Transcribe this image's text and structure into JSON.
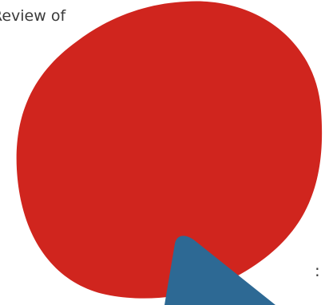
{
  "text_fragments": {
    "top": "Review of",
    "bottom": ":"
  },
  "colors": {
    "red_blob": "#d0251e",
    "blue_shape": "#2d6994",
    "text": "#3a3a3a",
    "background": "#ffffff"
  }
}
